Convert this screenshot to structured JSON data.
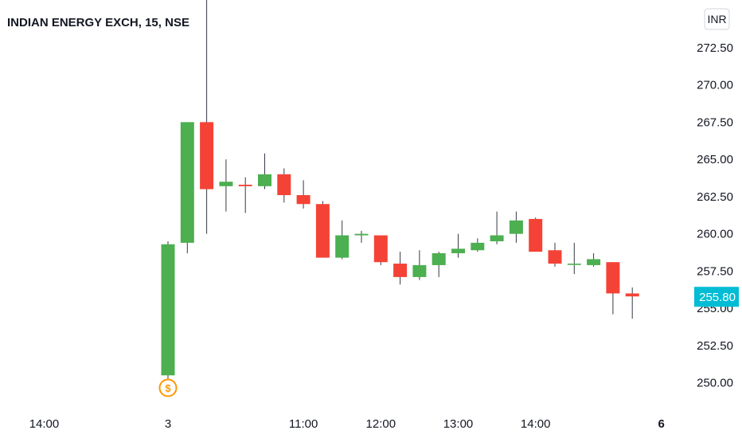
{
  "chart_data": {
    "type": "candlestick",
    "title": "INDIAN ENERGY EXCH, 15, NSE",
    "currency": "INR",
    "ylim": [
      248.7,
      275.7
    ],
    "y_ticks": [
      "272.50",
      "270.00",
      "267.50",
      "265.00",
      "262.50",
      "260.00",
      "257.50",
      "255.00",
      "252.50",
      "250.00"
    ],
    "last_price": "255.80",
    "x_ticks": [
      {
        "label": "14:00",
        "bar": -6.4,
        "bold": false
      },
      {
        "label": "3",
        "bar": 0,
        "bold": false
      },
      {
        "label": "11:00",
        "bar": 7,
        "bold": false
      },
      {
        "label": "12:00",
        "bar": 11,
        "bold": false
      },
      {
        "label": "13:00",
        "bar": 15,
        "bold": false
      },
      {
        "label": "14:00",
        "bar": 19,
        "bold": false
      },
      {
        "label": "6",
        "bar": 25.5,
        "bold": true
      }
    ],
    "candles": [
      {
        "o": 250.5,
        "h": 259.5,
        "l": 249.2,
        "c": 259.3
      },
      {
        "o": 259.4,
        "h": 267.5,
        "l": 258.7,
        "c": 267.5
      },
      {
        "o": 267.5,
        "h": 277.0,
        "l": 260.0,
        "c": 263.0
      },
      {
        "o": 263.2,
        "h": 265.0,
        "l": 261.5,
        "c": 263.5
      },
      {
        "o": 263.3,
        "h": 263.8,
        "l": 261.4,
        "c": 263.2
      },
      {
        "o": 263.2,
        "h": 265.4,
        "l": 263.0,
        "c": 264.0
      },
      {
        "o": 264.0,
        "h": 264.4,
        "l": 262.1,
        "c": 262.6
      },
      {
        "o": 262.6,
        "h": 263.6,
        "l": 261.7,
        "c": 262.0
      },
      {
        "o": 262.0,
        "h": 262.2,
        "l": 258.4,
        "c": 258.4
      },
      {
        "o": 258.4,
        "h": 260.9,
        "l": 258.3,
        "c": 259.9
      },
      {
        "o": 259.9,
        "h": 260.2,
        "l": 259.4,
        "c": 260.0
      },
      {
        "o": 259.9,
        "h": 259.9,
        "l": 257.9,
        "c": 258.1
      },
      {
        "o": 258.0,
        "h": 258.8,
        "l": 256.6,
        "c": 257.1
      },
      {
        "o": 257.1,
        "h": 258.9,
        "l": 256.9,
        "c": 257.9
      },
      {
        "o": 257.9,
        "h": 258.8,
        "l": 257.1,
        "c": 258.7
      },
      {
        "o": 258.7,
        "h": 260.0,
        "l": 258.4,
        "c": 259.0
      },
      {
        "o": 258.9,
        "h": 259.7,
        "l": 258.8,
        "c": 259.4
      },
      {
        "o": 259.5,
        "h": 261.5,
        "l": 259.3,
        "c": 259.9
      },
      {
        "o": 260.0,
        "h": 261.5,
        "l": 259.4,
        "c": 260.9
      },
      {
        "o": 261.0,
        "h": 261.1,
        "l": 258.8,
        "c": 258.8
      },
      {
        "o": 258.9,
        "h": 259.4,
        "l": 257.8,
        "c": 258.0
      },
      {
        "o": 258.0,
        "h": 259.4,
        "l": 257.3,
        "c": 258.0
      },
      {
        "o": 257.9,
        "h": 258.7,
        "l": 257.8,
        "c": 258.3
      },
      {
        "o": 258.1,
        "h": 258.1,
        "l": 254.6,
        "c": 256.0
      },
      {
        "o": 256.0,
        "h": 256.4,
        "l": 254.3,
        "c": 255.8
      }
    ],
    "dividend_marker": {
      "label": "$",
      "bar": 0
    }
  },
  "colors": {
    "up": "#4caf50",
    "down": "#f44336",
    "wick": "#363a45",
    "last_price_bg": "#00bcd4",
    "marker": "#ff9800"
  }
}
